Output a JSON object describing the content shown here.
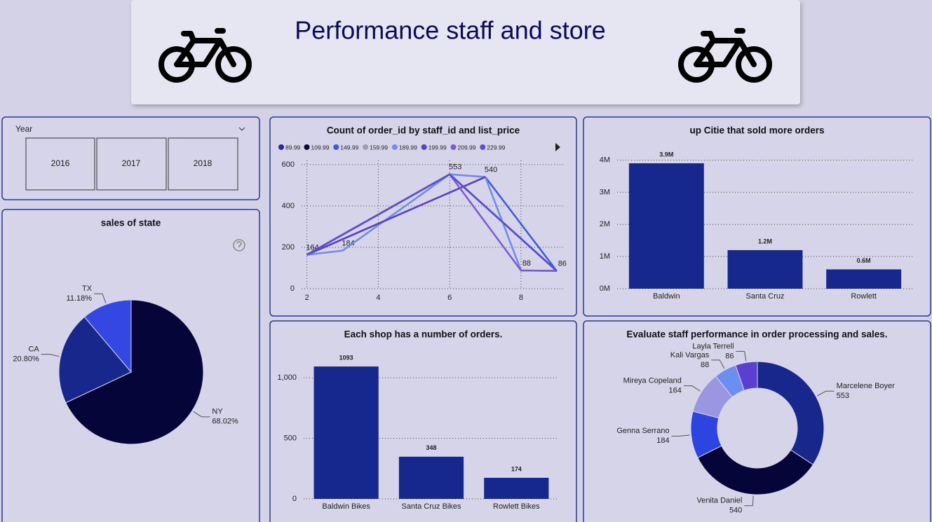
{
  "header": {
    "title": "Performance staff and store"
  },
  "slicer": {
    "title": "Year",
    "options": [
      "2016",
      "2017",
      "2018"
    ]
  },
  "chart_data": [
    {
      "type": "pie",
      "title": "sales of state",
      "categories": [
        "NY",
        "CA",
        "TX"
      ],
      "values": [
        68.02,
        20.8,
        11.18
      ],
      "value_labels": [
        "68.02%",
        "20.80%",
        "11.18%"
      ],
      "colors": [
        "#05053a",
        "#17278c",
        "#3447e0"
      ]
    },
    {
      "type": "line",
      "title": "Count of order_id by staff_id and list_price",
      "xlim": [
        1.85,
        9.2
      ],
      "xticks": [
        2,
        4,
        6,
        8
      ],
      "ylim": [
        0,
        620
      ],
      "yticks": [
        0,
        200,
        400,
        600
      ],
      "grid": true,
      "series": [
        {
          "name": "89.99",
          "color": "#1f2f8f",
          "x": [
            2,
            6,
            9
          ],
          "values": [
            164,
            553,
            86
          ]
        },
        {
          "name": "109.99",
          "color": "#0a0a3a",
          "x": [
            2,
            6,
            9
          ],
          "values": [
            164,
            553,
            86
          ]
        },
        {
          "name": "149.99",
          "color": "#3b5bdb",
          "x": [
            2,
            7,
            9
          ],
          "values": [
            164,
            540,
            86
          ]
        },
        {
          "name": "159.99",
          "color": "#a39bb0",
          "x": [
            2,
            3,
            6,
            7,
            8,
            9
          ],
          "values": [
            164,
            184,
            553,
            540,
            88,
            86
          ],
          "labels": true
        },
        {
          "name": "189.99",
          "color": "#6f8df0",
          "x": [
            2,
            3,
            6,
            7,
            8,
            9
          ],
          "values": [
            164,
            184,
            553,
            540,
            88,
            86
          ]
        },
        {
          "name": "199.99",
          "color": "#5a3fc9",
          "x": [
            2,
            7
          ],
          "values": [
            164,
            540
          ]
        },
        {
          "name": "209.99",
          "color": "#7b59d6",
          "x": [
            2,
            6,
            8,
            9
          ],
          "values": [
            164,
            553,
            88,
            86
          ]
        },
        {
          "name": "229.99",
          "color": "#5b4fd8",
          "x": [
            2,
            6,
            9
          ],
          "values": [
            164,
            553,
            86
          ]
        }
      ]
    },
    {
      "type": "bar",
      "title": "up Citie that sold more orders",
      "categories": [
        "Baldwin",
        "Santa Cruz",
        "Rowlett"
      ],
      "values": [
        3900000,
        1200000,
        600000
      ],
      "value_labels": [
        "3.9M",
        "1.2M",
        "0.6M"
      ],
      "color": "#16288e",
      "ylim": [
        0,
        4250000
      ],
      "yticks": [
        {
          "value": 0,
          "label": "0M"
        },
        {
          "value": 1000000,
          "label": "1M"
        },
        {
          "value": 2000000,
          "label": "2M"
        },
        {
          "value": 3000000,
          "label": "3M"
        },
        {
          "value": 4000000,
          "label": "4M"
        }
      ],
      "grid": true
    },
    {
      "type": "bar",
      "title": "Each shop has a number of orders.",
      "categories": [
        "Baldwin Bikes",
        "Santa Cruz Bikes",
        "Rowlett Bikes"
      ],
      "values": [
        1093,
        348,
        174
      ],
      "color": "#16288e",
      "ylim": [
        0,
        1180
      ],
      "yticks": [
        0,
        500,
        {
          "value": 1000,
          "label": "1,000"
        }
      ],
      "grid": true
    },
    {
      "type": "donut",
      "title": "Evaluate staff performance in order processing and sales.",
      "categories": [
        "Marcelene Boyer",
        "Venita Daniel",
        "Genna Serrano",
        "Mireya Copeland",
        "Kali Vargas",
        "Layla Terrell"
      ],
      "values": [
        553,
        540,
        184,
        164,
        88,
        86
      ],
      "colors": [
        "#17278c",
        "#05053a",
        "#2d45e0",
        "#9b96e0",
        "#6b8ef0",
        "#5a3fd0"
      ]
    }
  ]
}
